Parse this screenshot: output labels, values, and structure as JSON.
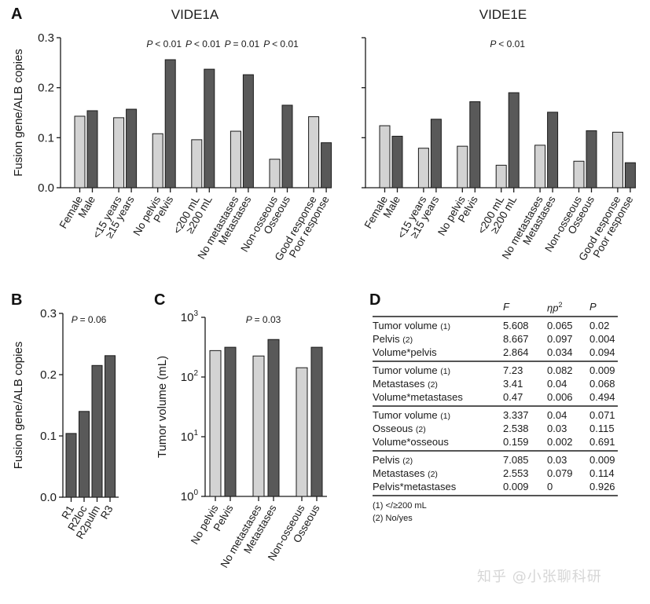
{
  "figure": {
    "panels": [
      "A",
      "B",
      "C",
      "D"
    ],
    "colors": {
      "light_bar": "#d3d3d3",
      "dark_bar": "#595959",
      "bar_outline": "#1a1a1a"
    }
  },
  "chart_data": [
    {
      "id": "A-left",
      "panel": "A",
      "type": "bar",
      "title": "VIDE1A",
      "ylabel": "Fusion gene/ALB copies",
      "xlabel": "",
      "ylim": [
        0,
        0.3
      ],
      "yticks": [
        "0.0",
        "0.1",
        "0.2",
        "0.3"
      ],
      "grid": false,
      "categories": [
        "Female",
        "Male",
        "<15 years",
        "≥15 years",
        "No pelvis",
        "Pelvis",
        "<200 mL",
        "≥200 mL",
        "No metastases",
        "Metastases",
        "Non-osseous",
        "Osseous",
        "Good response",
        "Poor response"
      ],
      "values": [
        0.143,
        0.154,
        0.14,
        0.157,
        0.108,
        0.256,
        0.096,
        0.237,
        0.113,
        0.226,
        0.057,
        0.165,
        0.142,
        0.09
      ],
      "annotations": [
        {
          "group": 3,
          "text": "< 0.01",
          "prefix": "P"
        },
        {
          "group": 4,
          "text": "< 0.01",
          "prefix": "P"
        },
        {
          "group": 5,
          "text": "= 0.01",
          "prefix": "P"
        },
        {
          "group": 6,
          "text": "< 0.01",
          "prefix": "P"
        }
      ]
    },
    {
      "id": "A-right",
      "panel": "A",
      "type": "bar",
      "title": "VIDE1E",
      "ylabel": "",
      "xlabel": "",
      "ylim": [
        0,
        0.3
      ],
      "yticks": [
        "",
        "",
        "",
        ""
      ],
      "grid": false,
      "categories": [
        "Female",
        "Male",
        "<15 years",
        "≥15 years",
        "No pelvis",
        "Pelvis",
        "<200 mL",
        "≥200 mL",
        "No metastases",
        "Metastases",
        "Non-osseous",
        "Osseous",
        "Good response",
        "Poor response"
      ],
      "values": [
        0.124,
        0.103,
        0.079,
        0.137,
        0.083,
        0.172,
        0.045,
        0.19,
        0.085,
        0.151,
        0.053,
        0.114,
        0.111,
        0.05
      ],
      "annotations": [
        {
          "group": 4,
          "text": "< 0.01",
          "prefix": "P"
        }
      ]
    },
    {
      "id": "B",
      "panel": "B",
      "type": "bar",
      "title": "",
      "ylabel": "Fusion gene/ALB copies",
      "xlabel": "",
      "ylim": [
        0,
        0.3
      ],
      "yticks": [
        "0.0",
        "0.1",
        "0.2",
        "0.3"
      ],
      "grid": false,
      "categories": [
        "R1",
        "R2loc",
        "R2pulm",
        "R3"
      ],
      "values": [
        0.104,
        0.14,
        0.215,
        0.231
      ],
      "annotations": [
        {
          "text": "= 0.06",
          "prefix": "P"
        }
      ]
    },
    {
      "id": "C",
      "panel": "C",
      "type": "bar",
      "title": "",
      "ylabel": "Tumor volume (mL)",
      "xlabel": "",
      "yscale": "log",
      "ylim": [
        1,
        1000
      ],
      "yticks": [
        {
          "base": "10",
          "exp": "0"
        },
        {
          "base": "10",
          "exp": "1"
        },
        {
          "base": "10",
          "exp": "2"
        },
        {
          "base": "10",
          "exp": "3"
        }
      ],
      "grid": false,
      "categories": [
        "No pelvis",
        "Pelvis",
        "No metastases",
        "Metastases",
        "Non-osseous",
        "Osseous"
      ],
      "values": [
        277,
        315,
        225,
        425,
        143,
        315
      ],
      "annotations": [
        {
          "text": "= 0.03",
          "prefix": "P"
        }
      ]
    },
    {
      "id": "D",
      "panel": "D",
      "type": "table",
      "columns": [
        {
          "label": "F"
        },
        {
          "label": "ηp",
          "sup": "2"
        },
        {
          "label": "P"
        }
      ],
      "groups": [
        [
          {
            "label": "Tumor volume",
            "note": "(1)",
            "F": "5.608",
            "eta": "0.065",
            "P": "0.02"
          },
          {
            "label": "Pelvis",
            "note": "(2)",
            "F": "8.667",
            "eta": "0.097",
            "P": "0.004"
          },
          {
            "label": "Volume*pelvis",
            "note": "",
            "F": "2.864",
            "eta": "0.034",
            "P": "0.094"
          }
        ],
        [
          {
            "label": "Tumor volume",
            "note": "(1)",
            "F": "7.23",
            "eta": "0.082",
            "P": "0.009"
          },
          {
            "label": "Metastases",
            "note": "(2)",
            "F": "3.41",
            "eta": "0.04",
            "P": "0.068"
          },
          {
            "label": "Volume*metastases",
            "note": "",
            "F": "0.47",
            "eta": "0.006",
            "P": "0.494"
          }
        ],
        [
          {
            "label": "Tumor volume",
            "note": "(1)",
            "F": "3.337",
            "eta": "0.04",
            "P": "0.071"
          },
          {
            "label": "Osseous",
            "note": "(2)",
            "F": "2.538",
            "eta": "0.03",
            "P": "0.115"
          },
          {
            "label": "Volume*osseous",
            "note": "",
            "F": "0.159",
            "eta": "0.002",
            "P": "0.691"
          }
        ],
        [
          {
            "label": "Pelvis",
            "note": "(2)",
            "F": "7.085",
            "eta": "0.03",
            "P": "0.009"
          },
          {
            "label": "Metastases",
            "note": "(2)",
            "F": "2.553",
            "eta": "0.079",
            "P": "0.114"
          },
          {
            "label": "Pelvis*metastases",
            "note": "",
            "F": "0.009",
            "eta": "0",
            "P": "0.926"
          }
        ]
      ],
      "footnotes": [
        "(1) </≥200 mL",
        "(2) No/yes"
      ]
    }
  ],
  "watermark": "知乎 @小张聊科研"
}
